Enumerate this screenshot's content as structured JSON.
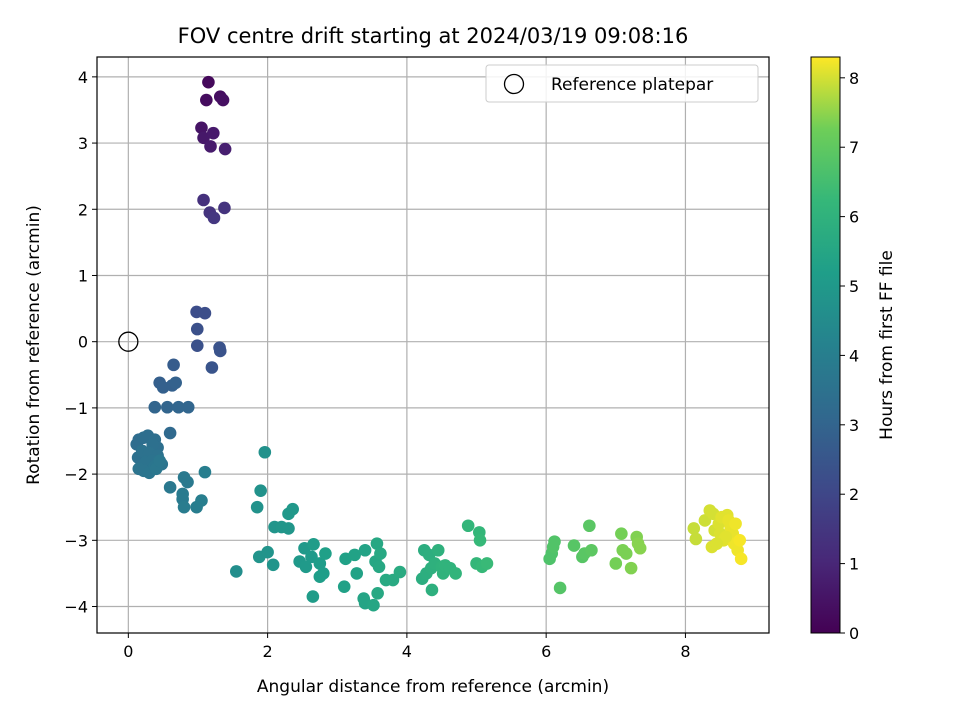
{
  "chart_data": {
    "type": "scatter",
    "title": "FOV centre drift starting at 2024/03/19 09:08:16",
    "xlabel": "Angular distance from reference (arcmin)",
    "ylabel": "Rotation from reference (arcmin)",
    "xlim": [
      -0.45,
      9.2
    ],
    "ylim": [
      -4.4,
      4.3
    ],
    "xticks": [
      0,
      2,
      4,
      6,
      8
    ],
    "yticks": [
      -4,
      -3,
      -2,
      -1,
      0,
      1,
      2,
      3,
      4
    ],
    "grid": true,
    "legend": {
      "placement": "top-right",
      "entries": [
        "Reference platepar"
      ]
    },
    "colormap": "viridis",
    "colorbar": {
      "label": "Hours from first FF file",
      "range": [
        0,
        8.3
      ],
      "ticks": [
        0,
        1,
        2,
        3,
        4,
        5,
        6,
        7,
        8
      ]
    },
    "reference_point": {
      "x": 0,
      "y": 0,
      "name": "Reference platepar"
    },
    "series": [
      {
        "points": [
          [
            1.15,
            3.92,
            0.2
          ],
          [
            1.12,
            3.65,
            0.3
          ],
          [
            1.32,
            3.7,
            0.35
          ],
          [
            1.36,
            3.65,
            0.4
          ],
          [
            1.05,
            3.23,
            0.5
          ],
          [
            1.08,
            3.08,
            0.6
          ],
          [
            1.22,
            3.15,
            0.65
          ],
          [
            1.18,
            2.95,
            0.7
          ],
          [
            1.39,
            2.91,
            0.8
          ],
          [
            1.08,
            2.14,
            1.3
          ],
          [
            1.17,
            1.95,
            1.4
          ],
          [
            1.23,
            1.87,
            1.5
          ],
          [
            1.38,
            2.02,
            1.4
          ],
          [
            0.98,
            0.45,
            2.2
          ],
          [
            1.1,
            0.43,
            2.25
          ],
          [
            0.99,
            0.19,
            2.3
          ],
          [
            0.99,
            -0.06,
            2.35
          ],
          [
            1.31,
            -0.09,
            2.4
          ],
          [
            1.32,
            -0.14,
            2.4
          ],
          [
            1.2,
            -0.39,
            2.45
          ],
          [
            0.65,
            -0.35,
            2.7
          ],
          [
            0.45,
            -0.62,
            2.8
          ],
          [
            0.5,
            -0.69,
            2.85
          ],
          [
            0.63,
            -0.66,
            2.85
          ],
          [
            0.68,
            -0.62,
            2.9
          ],
          [
            0.38,
            -0.99,
            3.0
          ],
          [
            0.56,
            -0.99,
            3.0
          ],
          [
            0.72,
            -0.99,
            3.05
          ],
          [
            0.86,
            -0.99,
            3.05
          ],
          [
            0.6,
            -1.38,
            3.2
          ],
          [
            0.12,
            -1.55,
            3.3
          ],
          [
            0.15,
            -1.48,
            3.3
          ],
          [
            0.22,
            -1.45,
            3.35
          ],
          [
            0.28,
            -1.42,
            3.35
          ],
          [
            0.38,
            -1.48,
            3.4
          ],
          [
            0.42,
            -1.6,
            3.4
          ],
          [
            0.35,
            -1.55,
            3.45
          ],
          [
            0.14,
            -1.75,
            3.45
          ],
          [
            0.2,
            -1.65,
            3.5
          ],
          [
            0.3,
            -1.68,
            3.5
          ],
          [
            0.42,
            -1.72,
            3.5
          ],
          [
            0.25,
            -1.82,
            3.55
          ],
          [
            0.34,
            -1.8,
            3.55
          ],
          [
            0.48,
            -1.85,
            3.6
          ],
          [
            0.15,
            -1.92,
            3.6
          ],
          [
            0.22,
            -1.95,
            3.6
          ],
          [
            0.3,
            -1.98,
            3.65
          ],
          [
            0.38,
            -1.88,
            3.65
          ],
          [
            0.4,
            -1.92,
            3.7
          ],
          [
            0.45,
            -1.8,
            3.7
          ],
          [
            0.6,
            -2.2,
            3.75
          ],
          [
            0.8,
            -2.05,
            3.8
          ],
          [
            0.85,
            -2.12,
            3.8
          ],
          [
            0.78,
            -2.3,
            3.85
          ],
          [
            0.78,
            -2.38,
            3.85
          ],
          [
            0.8,
            -2.5,
            3.9
          ],
          [
            0.98,
            -2.5,
            3.95
          ],
          [
            1.05,
            -2.4,
            4.0
          ],
          [
            1.1,
            -1.97,
            4.0
          ],
          [
            1.55,
            -3.47,
            4.6
          ],
          [
            1.96,
            -1.67,
            4.7
          ],
          [
            1.9,
            -2.25,
            4.75
          ],
          [
            1.85,
            -2.5,
            4.75
          ],
          [
            1.88,
            -3.25,
            4.8
          ],
          [
            2.0,
            -3.18,
            4.8
          ],
          [
            2.08,
            -3.37,
            4.85
          ],
          [
            2.1,
            -2.8,
            4.85
          ],
          [
            2.2,
            -2.8,
            4.9
          ],
          [
            2.3,
            -2.82,
            4.9
          ],
          [
            2.3,
            -2.6,
            4.95
          ],
          [
            2.36,
            -2.53,
            4.95
          ],
          [
            2.46,
            -3.32,
            5.0
          ],
          [
            2.53,
            -3.12,
            5.0
          ],
          [
            2.55,
            -3.4,
            5.05
          ],
          [
            2.63,
            -3.25,
            5.05
          ],
          [
            2.66,
            -3.06,
            5.1
          ],
          [
            2.65,
            -3.85,
            5.1
          ],
          [
            2.75,
            -3.35,
            5.15
          ],
          [
            2.75,
            -3.55,
            5.2
          ],
          [
            2.8,
            -3.5,
            5.2
          ],
          [
            2.83,
            -3.2,
            5.25
          ],
          [
            3.1,
            -3.7,
            5.3
          ],
          [
            3.12,
            -3.28,
            5.3
          ],
          [
            3.25,
            -3.22,
            5.35
          ],
          [
            3.28,
            -3.5,
            5.35
          ],
          [
            3.4,
            -3.15,
            5.4
          ],
          [
            3.38,
            -3.88,
            5.45
          ],
          [
            3.4,
            -3.95,
            5.45
          ],
          [
            3.52,
            -3.98,
            5.5
          ],
          [
            3.55,
            -3.32,
            5.5
          ],
          [
            3.57,
            -3.05,
            5.55
          ],
          [
            3.6,
            -3.4,
            5.55
          ],
          [
            3.62,
            -3.2,
            5.6
          ],
          [
            3.58,
            -3.8,
            5.6
          ],
          [
            3.7,
            -3.6,
            5.65
          ],
          [
            3.8,
            -3.6,
            5.65
          ],
          [
            3.9,
            -3.48,
            5.7
          ],
          [
            4.25,
            -3.15,
            5.8
          ],
          [
            4.22,
            -3.58,
            5.8
          ],
          [
            4.28,
            -3.5,
            5.85
          ],
          [
            4.32,
            -3.22,
            5.85
          ],
          [
            4.35,
            -3.42,
            5.9
          ],
          [
            4.36,
            -3.75,
            5.9
          ],
          [
            4.4,
            -3.35,
            5.95
          ],
          [
            4.45,
            -3.15,
            5.95
          ],
          [
            4.5,
            -3.4,
            6.0
          ],
          [
            4.52,
            -3.5,
            6.0
          ],
          [
            4.55,
            -3.38,
            6.05
          ],
          [
            4.62,
            -3.42,
            6.05
          ],
          [
            4.7,
            -3.5,
            6.1
          ],
          [
            4.88,
            -2.78,
            6.15
          ],
          [
            5.0,
            -3.35,
            6.2
          ],
          [
            5.04,
            -2.88,
            6.2
          ],
          [
            5.05,
            -3.0,
            6.25
          ],
          [
            5.08,
            -3.4,
            6.25
          ],
          [
            5.15,
            -3.35,
            6.3
          ],
          [
            6.05,
            -3.28,
            6.7
          ],
          [
            6.08,
            -3.2,
            6.7
          ],
          [
            6.1,
            -3.1,
            6.75
          ],
          [
            6.12,
            -3.02,
            6.75
          ],
          [
            6.2,
            -3.72,
            6.8
          ],
          [
            6.4,
            -3.08,
            6.85
          ],
          [
            6.52,
            -3.25,
            6.85
          ],
          [
            6.55,
            -3.2,
            6.9
          ],
          [
            6.62,
            -2.78,
            6.9
          ],
          [
            6.65,
            -3.15,
            6.95
          ],
          [
            7.0,
            -3.35,
            7.3
          ],
          [
            7.08,
            -2.9,
            7.3
          ],
          [
            7.1,
            -3.15,
            7.35
          ],
          [
            7.15,
            -3.2,
            7.35
          ],
          [
            7.22,
            -3.42,
            7.4
          ],
          [
            7.3,
            -2.95,
            7.4
          ],
          [
            7.32,
            -3.05,
            7.45
          ],
          [
            7.35,
            -3.12,
            7.45
          ],
          [
            8.12,
            -2.82,
            7.9
          ],
          [
            8.15,
            -2.98,
            7.9
          ],
          [
            8.28,
            -2.7,
            7.95
          ],
          [
            8.35,
            -2.55,
            8.0
          ],
          [
            8.4,
            -2.6,
            8.0
          ],
          [
            8.42,
            -2.85,
            8.0
          ],
          [
            8.38,
            -3.1,
            8.05
          ],
          [
            8.48,
            -2.75,
            8.05
          ],
          [
            8.5,
            -2.9,
            8.05
          ],
          [
            8.52,
            -2.65,
            8.1
          ],
          [
            8.55,
            -3.0,
            8.1
          ],
          [
            8.6,
            -2.62,
            8.1
          ],
          [
            8.62,
            -2.7,
            8.15
          ],
          [
            8.65,
            -2.8,
            8.15
          ],
          [
            8.68,
            -2.9,
            8.15
          ],
          [
            8.7,
            -3.05,
            8.2
          ],
          [
            8.72,
            -2.75,
            8.2
          ],
          [
            8.75,
            -3.15,
            8.2
          ],
          [
            8.78,
            -3.0,
            8.25
          ],
          [
            8.8,
            -3.28,
            8.25
          ],
          [
            8.58,
            -2.95,
            8.1
          ],
          [
            8.45,
            -3.05,
            8.05
          ]
        ]
      }
    ]
  }
}
